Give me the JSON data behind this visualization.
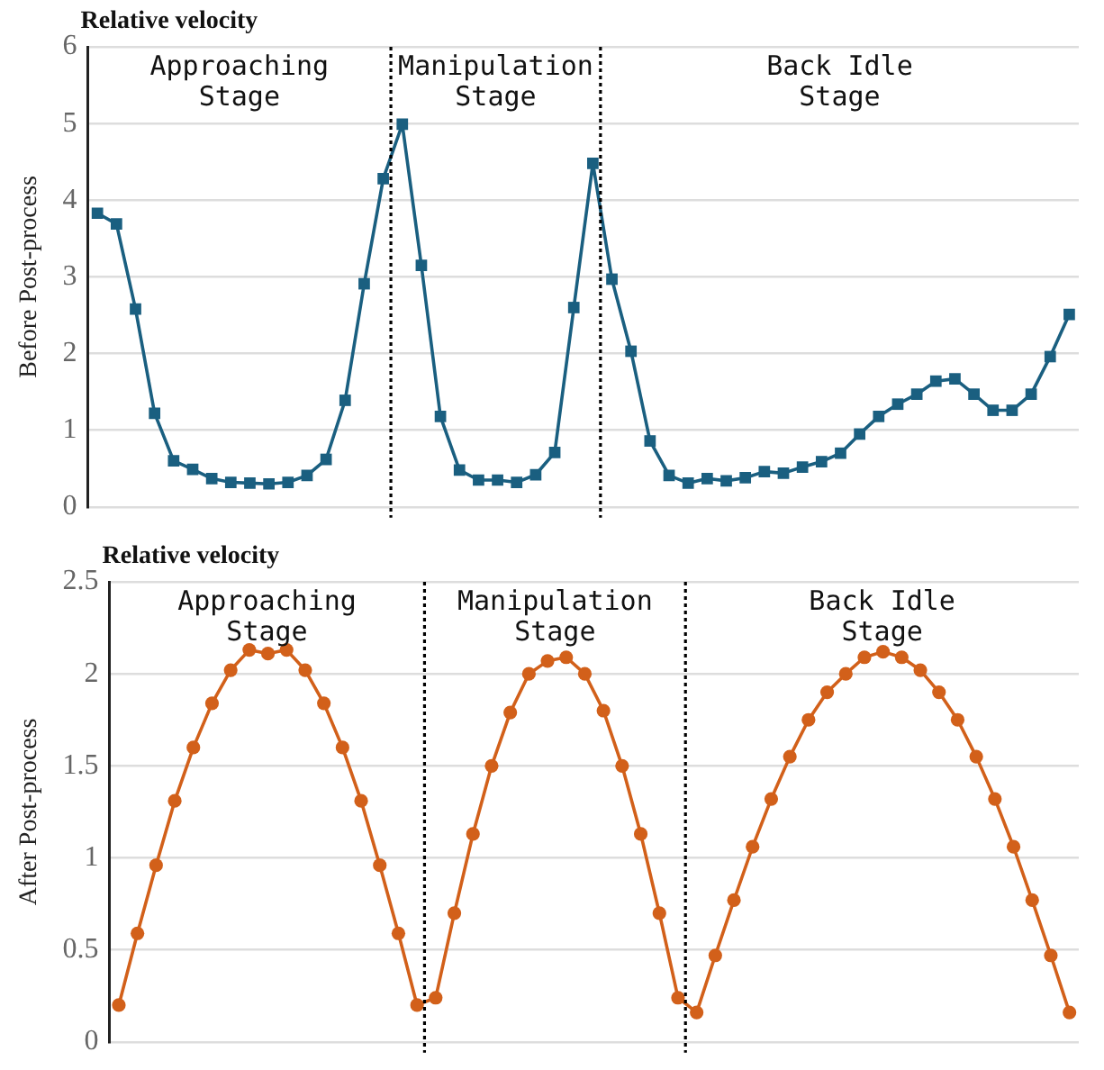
{
  "chart_data": [
    {
      "type": "line",
      "title": "Relative velocity",
      "ylabel": "Before Post-process",
      "marker": "square",
      "grid": "y",
      "tick_labels": "y",
      "categories": [
        null,
        null,
        null,
        null,
        null,
        null,
        null,
        null,
        null,
        null,
        null,
        null,
        null,
        null,
        null,
        null,
        null,
        null,
        null,
        null,
        null,
        null,
        null,
        null,
        null,
        null,
        null,
        null,
        null,
        null,
        null,
        null,
        null,
        null,
        null,
        null,
        null,
        null,
        null,
        null,
        null,
        null,
        null,
        null,
        null,
        null,
        null,
        null,
        null,
        null,
        null,
        null
      ],
      "ylim": [
        0,
        6
      ],
      "yticks": [
        0,
        1,
        2,
        3,
        4,
        5,
        6
      ],
      "series": [
        {
          "color": "#1a5f80",
          "values": [
            3.83,
            3.69,
            2.58,
            1.22,
            0.6,
            0.49,
            0.37,
            0.32,
            0.31,
            0.3,
            0.32,
            0.41,
            0.62,
            1.39,
            2.91,
            4.28,
            4.99,
            3.15,
            1.18,
            0.48,
            0.35,
            0.35,
            0.32,
            0.42,
            0.71,
            2.6,
            4.48,
            2.97,
            2.03,
            0.86,
            0.41,
            0.31,
            0.37,
            0.34,
            0.38,
            0.46,
            0.44,
            0.52,
            0.59,
            0.7,
            0.95,
            1.18,
            1.34,
            1.47,
            1.64,
            1.67,
            1.47,
            1.26,
            1.26,
            1.47,
            1.96,
            2.51
          ]
        }
      ],
      "annotations": [
        "Approaching\nStage",
        "Manipulation\nStage",
        "Back Idle\nStage"
      ]
    },
    {
      "type": "line",
      "title": "Relative velocity",
      "ylabel": "After Post-process",
      "marker": "circle",
      "grid": "y",
      "tick_labels": "y",
      "categories": [
        null,
        null,
        null,
        null,
        null,
        null,
        null,
        null,
        null,
        null,
        null,
        null,
        null,
        null,
        null,
        null,
        null,
        null,
        null,
        null,
        null,
        null,
        null,
        null,
        null,
        null,
        null,
        null,
        null,
        null,
        null,
        null,
        null,
        null,
        null,
        null,
        null,
        null,
        null,
        null,
        null,
        null,
        null,
        null,
        null,
        null,
        null,
        null,
        null,
        null,
        null,
        null
      ],
      "ylim": [
        0,
        2.5
      ],
      "yticks": [
        0,
        0.5,
        1,
        1.5,
        2,
        2.5
      ],
      "series": [
        {
          "color": "#d2601a",
          "values": [
            0.2,
            0.59,
            0.96,
            1.31,
            1.6,
            1.84,
            2.02,
            2.13,
            2.11,
            2.13,
            2.02,
            1.84,
            1.6,
            1.31,
            0.96,
            0.59,
            0.2,
            0.24,
            0.7,
            1.13,
            1.5,
            1.79,
            2.0,
            2.07,
            2.09,
            2.0,
            1.8,
            1.5,
            1.13,
            0.7,
            0.24,
            0.16,
            0.47,
            0.77,
            1.06,
            1.32,
            1.55,
            1.75,
            1.9,
            2.0,
            2.09,
            2.12,
            2.09,
            2.02,
            1.9,
            1.75,
            1.55,
            1.32,
            1.06,
            0.77,
            0.47,
            0.16
          ]
        }
      ],
      "annotations": [
        "Approaching\nStage",
        "Manipulation\nStage",
        "Back Idle\nStage"
      ]
    }
  ]
}
